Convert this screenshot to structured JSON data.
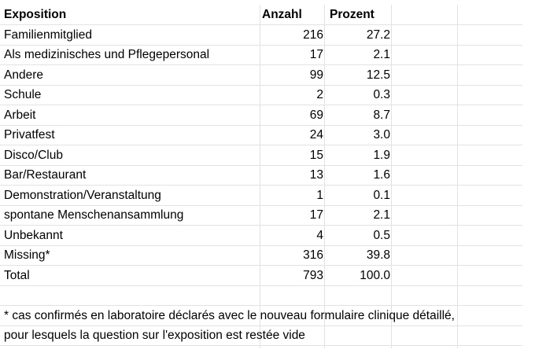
{
  "table": {
    "headers": {
      "label": "Exposition",
      "count": "Anzahl",
      "percent": "Prozent"
    },
    "rows": [
      {
        "label": "Familienmitglied",
        "count": "216",
        "percent": "27.2"
      },
      {
        "label": "Als medizinisches und Pflegepersonal",
        "count": "17",
        "percent": "2.1"
      },
      {
        "label": "Andere",
        "count": "99",
        "percent": "12.5"
      },
      {
        "label": "Schule",
        "count": "2",
        "percent": "0.3"
      },
      {
        "label": "Arbeit",
        "count": "69",
        "percent": "8.7"
      },
      {
        "label": "Privatfest",
        "count": "24",
        "percent": "3.0"
      },
      {
        "label": "Disco/Club",
        "count": "15",
        "percent": "1.9"
      },
      {
        "label": "Bar/Restaurant",
        "count": "13",
        "percent": "1.6"
      },
      {
        "label": "Demonstration/Veranstaltung",
        "count": "1",
        "percent": "0.1"
      },
      {
        "label": "spontane Menschenansammlung",
        "count": "17",
        "percent": "2.1"
      },
      {
        "label": "Unbekannt",
        "count": "4",
        "percent": "0.5"
      },
      {
        "label": "Missing*",
        "count": "316",
        "percent": "39.8"
      },
      {
        "label": "Total",
        "count": "793",
        "percent": "100.0"
      }
    ]
  },
  "footnote": {
    "line1": "* cas confirmés en laboratoire déclarés avec le nouveau formulaire clinique détaillé,",
    "line2": "pour lesquels la question sur l'exposition est restée vide"
  }
}
